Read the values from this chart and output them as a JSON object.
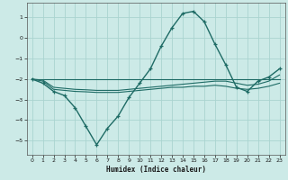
{
  "xlabel": "Humidex (Indice chaleur)",
  "background_color": "#cceae7",
  "grid_color": "#aad4d0",
  "line_color": "#1e6b65",
  "xlim": [
    -0.5,
    23.5
  ],
  "ylim": [
    -5.7,
    1.7
  ],
  "xticks": [
    0,
    1,
    2,
    3,
    4,
    5,
    6,
    7,
    8,
    9,
    10,
    11,
    12,
    13,
    14,
    15,
    16,
    17,
    18,
    19,
    20,
    21,
    22,
    23
  ],
  "yticks": [
    -5,
    -4,
    -3,
    -2,
    -1,
    0,
    1
  ],
  "curve1_x": [
    0,
    1,
    2,
    3,
    4,
    5,
    6,
    7,
    8,
    9,
    10,
    11,
    12,
    13,
    14,
    15,
    16,
    17,
    18,
    19,
    20,
    21,
    22,
    23
  ],
  "curve1_y": [
    -2.0,
    -2.2,
    -2.6,
    -2.8,
    -3.4,
    -4.3,
    -5.2,
    -4.4,
    -3.8,
    -2.9,
    -2.2,
    -1.5,
    -0.4,
    0.5,
    1.2,
    1.3,
    0.8,
    -0.3,
    -1.3,
    -2.4,
    -2.6,
    -2.1,
    -1.9,
    -1.5
  ],
  "curve2_x": [
    0,
    1,
    2,
    3,
    4,
    5,
    6,
    7,
    8,
    9,
    10,
    11,
    12,
    13,
    14,
    15,
    16,
    17,
    18,
    19,
    20,
    21,
    22,
    23
  ],
  "curve2_y": [
    -2.0,
    -2.1,
    -2.5,
    -2.55,
    -2.6,
    -2.62,
    -2.65,
    -2.65,
    -2.65,
    -2.6,
    -2.55,
    -2.5,
    -2.45,
    -2.4,
    -2.4,
    -2.35,
    -2.35,
    -2.3,
    -2.35,
    -2.45,
    -2.5,
    -2.45,
    -2.35,
    -2.2
  ],
  "curve3_x": [
    0,
    1,
    2,
    3,
    4,
    5,
    6,
    7,
    8,
    9,
    10,
    11,
    12,
    13,
    14,
    15,
    16,
    17,
    18,
    19,
    20,
    21,
    22,
    23
  ],
  "curve3_y": [
    -2.0,
    -2.05,
    -2.4,
    -2.45,
    -2.5,
    -2.52,
    -2.55,
    -2.55,
    -2.55,
    -2.5,
    -2.45,
    -2.4,
    -2.35,
    -2.3,
    -2.25,
    -2.2,
    -2.15,
    -2.1,
    -2.1,
    -2.2,
    -2.3,
    -2.25,
    -2.1,
    -1.8
  ],
  "curve4_x": [
    0,
    23
  ],
  "curve4_y": [
    -2.0,
    -2.0
  ]
}
